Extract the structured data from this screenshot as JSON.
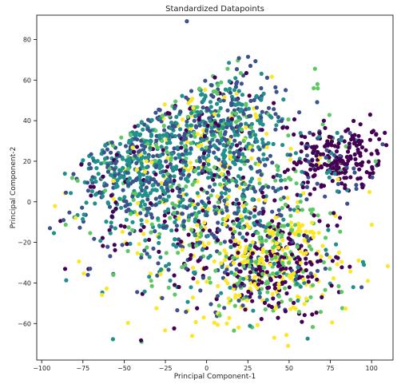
{
  "chart_data": {
    "type": "scatter",
    "title": "Standardized Datapoints",
    "xlabel": "Principal Component-1",
    "ylabel": "Principal Component-2",
    "xlim": [
      -103,
      113
    ],
    "ylim": [
      -78,
      92
    ],
    "xticks": [
      -100,
      -75,
      -50,
      -25,
      0,
      25,
      50,
      75,
      100
    ],
    "yticks": [
      -60,
      -40,
      -20,
      0,
      20,
      40,
      60,
      80
    ],
    "grid": false,
    "legend": "none",
    "colormap": "viridis",
    "colors": [
      "#440154",
      "#3b528b",
      "#21908d",
      "#5dc863",
      "#fde725"
    ],
    "point_count": 2600,
    "clusters": [
      {
        "center": [
          80,
          22
        ],
        "spread": [
          14,
          9
        ],
        "weight": 0.09,
        "mix": [
          0.75,
          0.15,
          0.05,
          0.03,
          0.02
        ]
      },
      {
        "center": [
          40,
          -30
        ],
        "spread": [
          20,
          14
        ],
        "weight": 0.2,
        "mix": [
          0.28,
          0.08,
          0.04,
          0.2,
          0.4
        ]
      },
      {
        "center": [
          -45,
          20
        ],
        "spread": [
          22,
          20
        ],
        "weight": 0.24,
        "mix": [
          0.08,
          0.35,
          0.42,
          0.12,
          0.03
        ]
      },
      {
        "center": [
          10,
          35
        ],
        "spread": [
          20,
          18
        ],
        "weight": 0.2,
        "mix": [
          0.06,
          0.38,
          0.3,
          0.16,
          0.1
        ]
      },
      {
        "center": [
          0,
          -5
        ],
        "spread": [
          35,
          28
        ],
        "weight": 0.27,
        "mix": [
          0.18,
          0.25,
          0.22,
          0.17,
          0.18
        ]
      }
    ],
    "outliers": [
      {
        "x": -12,
        "y": 89,
        "c": 1
      },
      {
        "x": 41,
        "y": -67,
        "c": 4
      },
      {
        "x": -72,
        "y": -36,
        "c": 1
      },
      {
        "x": 108,
        "y": 34,
        "c": 0
      },
      {
        "x": -95,
        "y": -13,
        "c": 1
      }
    ]
  }
}
